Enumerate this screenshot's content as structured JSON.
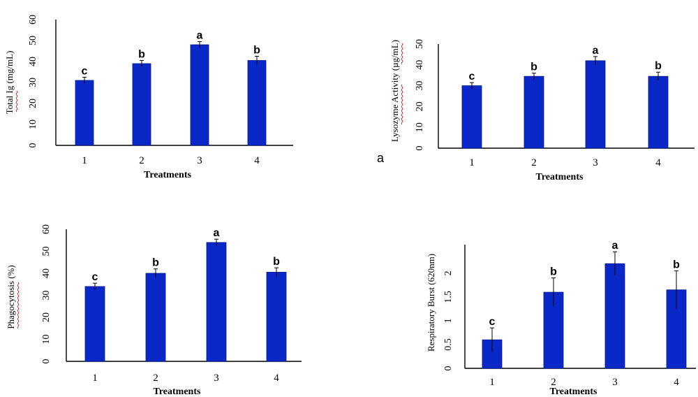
{
  "colors": {
    "bar": "#0a27c8",
    "bar_edge": "#071a8c"
  },
  "chart_data": [
    {
      "type": "bar",
      "categories": [
        "1",
        "2",
        "3",
        "4"
      ],
      "values": [
        31,
        39,
        48,
        40.5
      ],
      "errors": [
        1.5,
        1.5,
        1.5,
        2
      ],
      "letters": [
        "c",
        "b",
        "a",
        "b"
      ],
      "xlabel": "Treatments",
      "ylabel": "Total Ig (mg/mL)",
      "ylim": [
        0,
        60
      ],
      "yticks": [
        "0",
        "10",
        "20",
        "30",
        "40",
        "50",
        "60"
      ],
      "grid": false,
      "legend": "none"
    },
    {
      "type": "bar",
      "categories": [
        "1",
        "2",
        "3",
        "4"
      ],
      "values": [
        30,
        34.5,
        42,
        34.5
      ],
      "errors": [
        1.5,
        1.5,
        2,
        2
      ],
      "letters": [
        "c",
        "b",
        "a",
        "b"
      ],
      "xlabel": "Treatments",
      "ylabel": "Lysozyme Activity (µg/mL)",
      "panel_letter": "a",
      "ylim": [
        0,
        50
      ],
      "yticks": [
        "0",
        "10",
        "20",
        "30",
        "40",
        "50"
      ],
      "grid": false,
      "legend": "none"
    },
    {
      "type": "bar",
      "categories": [
        "1",
        "2",
        "3",
        "4"
      ],
      "values": [
        34,
        40,
        54,
        40.5
      ],
      "errors": [
        1.5,
        2,
        1.5,
        2
      ],
      "letters": [
        "c",
        "b",
        "a",
        "b"
      ],
      "xlabel": "Treatments",
      "ylabel": "Phagocytosis (%)",
      "ylim": [
        0,
        60
      ],
      "yticks": [
        "0",
        "10",
        "20",
        "30",
        "40",
        "50",
        "60"
      ],
      "grid": false,
      "legend": "none"
    },
    {
      "type": "bar",
      "categories": [
        "1",
        "2",
        "3",
        "4"
      ],
      "values": [
        0.6,
        1.6,
        2.2,
        1.65
      ],
      "errors": [
        0.25,
        0.3,
        0.25,
        0.4
      ],
      "letters": [
        "c",
        "b",
        "a",
        "b"
      ],
      "xlabel": "Treatments",
      "ylabel": "Respiratory Burst (620nm)",
      "ylim": [
        0,
        2.6
      ],
      "yticks": [
        "0",
        "0.5",
        "1",
        "1.5",
        "2"
      ],
      "grid": false,
      "legend": "none"
    }
  ]
}
